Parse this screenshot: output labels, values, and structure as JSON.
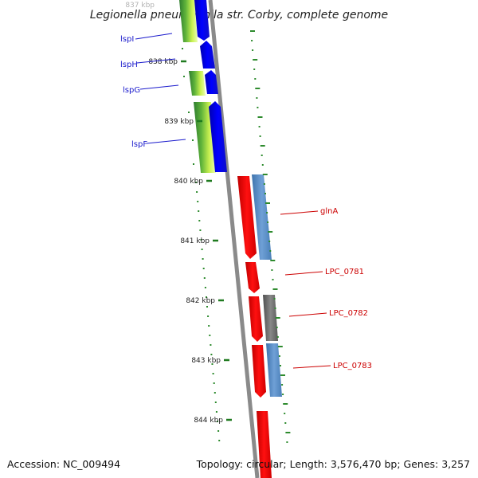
{
  "map": {
    "title": "Legionella pneumophila str. Corby, complete genome",
    "top_partial_tick": "837 kbp",
    "ticks": [
      "838 kbp",
      "839 kbp",
      "840 kbp",
      "841 kbp",
      "842 kbp",
      "843 kbp",
      "844 kbp"
    ],
    "genes": [
      {
        "name": "lspI",
        "color": "#1a1acc"
      },
      {
        "name": "lspH",
        "color": "#1a1acc"
      },
      {
        "name": "lspG",
        "color": "#1a1acc"
      },
      {
        "name": "lspF",
        "color": "#1a1acc"
      },
      {
        "name": "glnA",
        "color": "#cc0000"
      },
      {
        "name": "LPC_0781",
        "color": "#cc0000"
      },
      {
        "name": "LPC_0782",
        "color": "#cc0000"
      },
      {
        "name": "LPC_0783",
        "color": "#cc0000"
      }
    ],
    "colors": {
      "backbone": "#808080",
      "forward_cds": "#0000ee",
      "reverse_cds": "#ee0000",
      "orf": "#5b8fc4",
      "gray_feature": "#6e6e6e",
      "gc_skew": "#2e8b2e",
      "gc_content": "#9acd32",
      "tick_mark": "#1f7a1f"
    }
  },
  "footer": {
    "accession": "Accession: NC_009494",
    "topology": "Topology: circular; Length: 3,576,470 bp; Genes: 3,257"
  }
}
